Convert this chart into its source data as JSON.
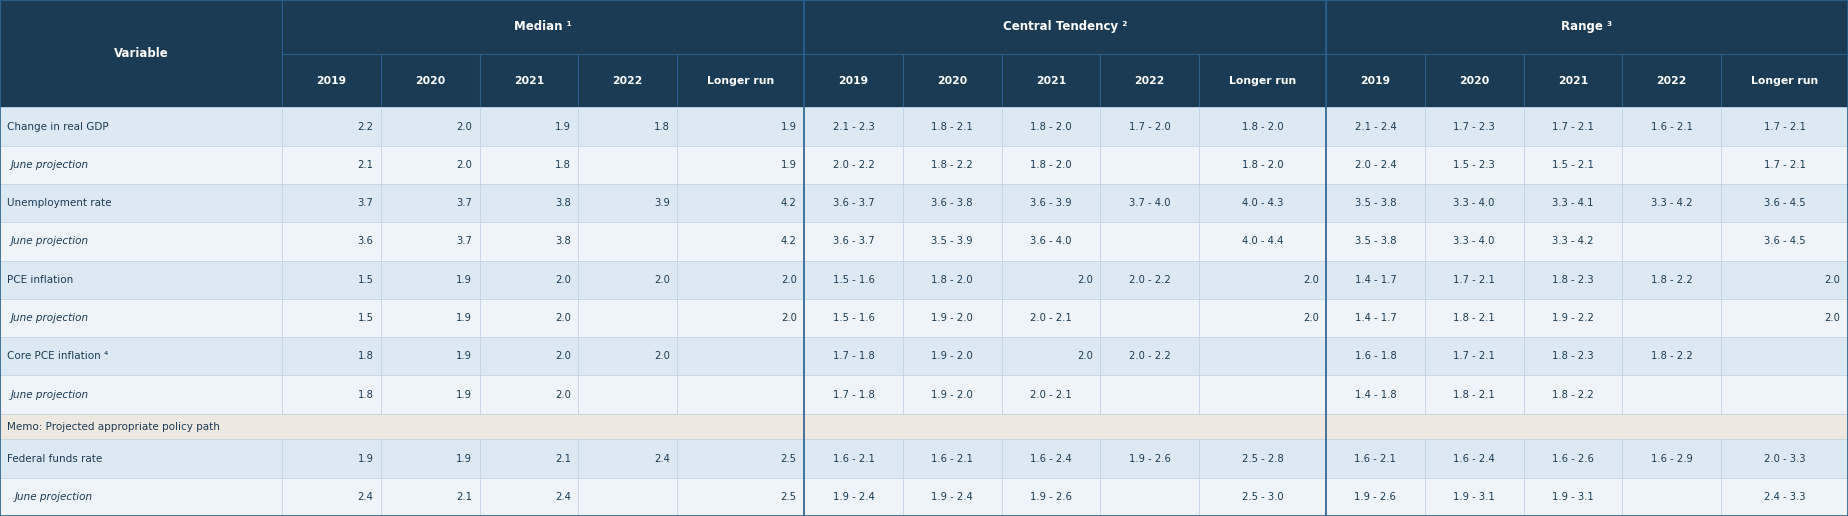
{
  "header_bg": "#1b3a54",
  "row_bg_blue": "#dce9f5",
  "row_bg_white": "#eef4fa",
  "memo_bg": "#ede8e0",
  "memo_row_bg_blue": "#dce9f5",
  "memo_row_bg_white": "#eef4fa",
  "text_dark": "#1b3a54",
  "border_light": "#b0c4d8",
  "border_dark": "#1b3a54",
  "col_groups": [
    {
      "label": "Median ¹",
      "span": 5
    },
    {
      "label": "Central Tendency ²",
      "span": 5
    },
    {
      "label": "Range ³",
      "span": 5
    }
  ],
  "col_sub_headers": [
    "2019",
    "2020",
    "2021",
    "2022",
    "Longer run"
  ],
  "rows": [
    {
      "label": "Change in real GDP",
      "indent": false,
      "values": [
        "2.2",
        "2.0",
        "1.9",
        "1.8",
        "1.9",
        "2.1 - 2.3",
        "1.8 - 2.1",
        "1.8 - 2.0",
        "1.7 - 2.0",
        "1.8 - 2.0",
        "2.1 - 2.4",
        "1.7 - 2.3",
        "1.7 - 2.1",
        "1.6 - 2.1",
        "1.7 - 2.1"
      ]
    },
    {
      "label": "June projection",
      "indent": true,
      "values": [
        "2.1",
        "2.0",
        "1.8",
        "",
        "1.9",
        "2.0 - 2.2",
        "1.8 - 2.2",
        "1.8 - 2.0",
        "",
        "1.8 - 2.0",
        "2.0 - 2.4",
        "1.5 - 2.3",
        "1.5 - 2.1",
        "",
        "1.7 - 2.1"
      ]
    },
    {
      "label": "Unemployment rate",
      "indent": false,
      "values": [
        "3.7",
        "3.7",
        "3.8",
        "3.9",
        "4.2",
        "3.6 - 3.7",
        "3.6 - 3.8",
        "3.6 - 3.9",
        "3.7 - 4.0",
        "4.0 - 4.3",
        "3.5 - 3.8",
        "3.3 - 4.0",
        "3.3 - 4.1",
        "3.3 - 4.2",
        "3.6 - 4.5"
      ]
    },
    {
      "label": "June projection",
      "indent": true,
      "values": [
        "3.6",
        "3.7",
        "3.8",
        "",
        "4.2",
        "3.6 - 3.7",
        "3.5 - 3.9",
        "3.6 - 4.0",
        "",
        "4.0 - 4.4",
        "3.5 - 3.8",
        "3.3 - 4.0",
        "3.3 - 4.2",
        "",
        "3.6 - 4.5"
      ]
    },
    {
      "label": "PCE inflation",
      "indent": false,
      "values": [
        "1.5",
        "1.9",
        "2.0",
        "2.0",
        "2.0",
        "1.5 - 1.6",
        "1.8 - 2.0",
        "2.0",
        "2.0 - 2.2",
        "2.0",
        "1.4 - 1.7",
        "1.7 - 2.1",
        "1.8 - 2.3",
        "1.8 - 2.2",
        "2.0"
      ]
    },
    {
      "label": "June projection",
      "indent": true,
      "values": [
        "1.5",
        "1.9",
        "2.0",
        "",
        "2.0",
        "1.5 - 1.6",
        "1.9 - 2.0",
        "2.0 - 2.1",
        "",
        "2.0",
        "1.4 - 1.7",
        "1.8 - 2.1",
        "1.9 - 2.2",
        "",
        "2.0"
      ]
    },
    {
      "label": "Core PCE inflation ⁴",
      "indent": false,
      "values": [
        "1.8",
        "1.9",
        "2.0",
        "2.0",
        "",
        "1.7 - 1.8",
        "1.9 - 2.0",
        "2.0",
        "2.0 - 2.2",
        "",
        "1.6 - 1.8",
        "1.7 - 2.1",
        "1.8 - 2.3",
        "1.8 - 2.2",
        ""
      ]
    },
    {
      "label": "June projection",
      "indent": true,
      "values": [
        "1.8",
        "1.9",
        "2.0",
        "",
        "",
        "1.7 - 1.8",
        "1.9 - 2.0",
        "2.0 - 2.1",
        "",
        "",
        "1.4 - 1.8",
        "1.8 - 2.1",
        "1.8 - 2.2",
        "",
        ""
      ]
    }
  ],
  "memo_label": "Memo: Projected appropriate policy path",
  "memo_rows": [
    {
      "label": "Federal funds rate",
      "indent": false,
      "values": [
        "1.9",
        "1.9",
        "2.1",
        "2.4",
        "2.5",
        "1.6 - 2.1",
        "1.6 - 2.1",
        "1.6 - 2.4",
        "1.9 - 2.6",
        "2.5 - 2.8",
        "1.6 - 2.1",
        "1.6 - 2.4",
        "1.6 - 2.6",
        "1.6 - 2.9",
        "2.0 - 3.3"
      ]
    },
    {
      "label": "June projection",
      "indent": true,
      "values": [
        "2.4",
        "2.1",
        "2.4",
        "",
        "2.5",
        "1.9 - 2.4",
        "1.9 - 2.4",
        "1.9 - 2.6",
        "",
        "2.5 - 3.0",
        "1.9 - 2.6",
        "1.9 - 3.1",
        "1.9 - 3.1",
        "",
        "2.4 - 3.3"
      ]
    }
  ]
}
